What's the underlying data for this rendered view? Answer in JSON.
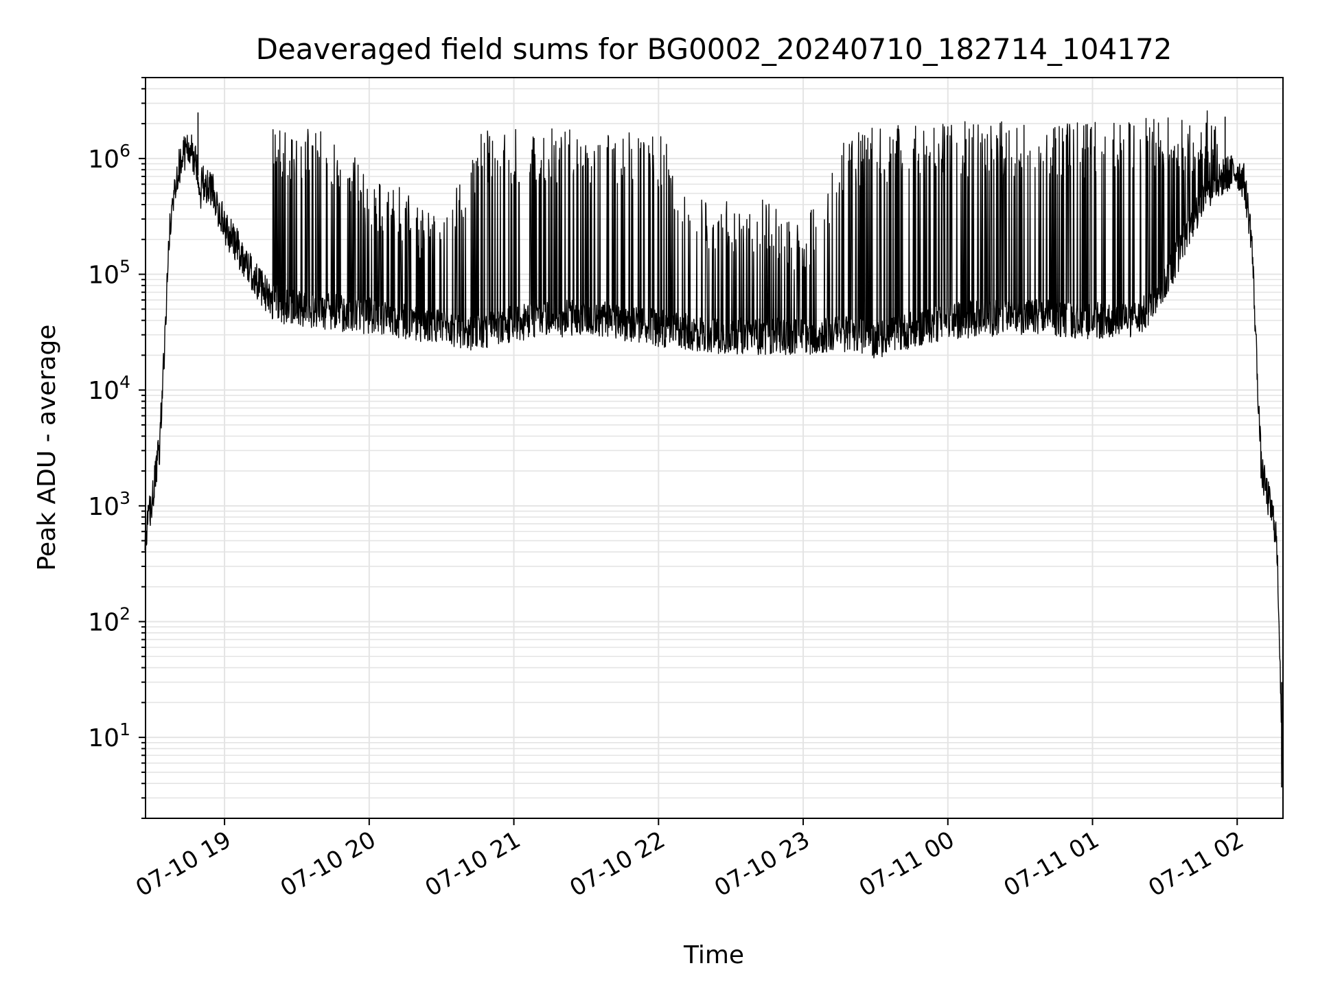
{
  "chart_data": {
    "type": "line",
    "title": "Deaveraged field sums for BG0002_20240710_182714_104172",
    "xlabel": "Time",
    "ylabel": "Peak ADU - average",
    "y_scale": "log",
    "xlim": [
      "2024-07-10 18:27:14",
      "2024-07-11 02:19:00"
    ],
    "ylim": [
      2,
      5000000
    ],
    "x_ticks": [
      {
        "value": "2024-07-10 19:00",
        "label": "07-10 19"
      },
      {
        "value": "2024-07-10 20:00",
        "label": "07-10 20"
      },
      {
        "value": "2024-07-10 21:00",
        "label": "07-10 21"
      },
      {
        "value": "2024-07-10 22:00",
        "label": "07-10 22"
      },
      {
        "value": "2024-07-10 23:00",
        "label": "07-10 23"
      },
      {
        "value": "2024-07-11 00:00",
        "label": "07-11 00"
      },
      {
        "value": "2024-07-11 01:00",
        "label": "07-11 01"
      },
      {
        "value": "2024-07-11 02:00",
        "label": "07-11 02"
      }
    ],
    "y_ticks": [
      {
        "value": 10,
        "base": "10",
        "exp": "1"
      },
      {
        "value": 100,
        "base": "10",
        "exp": "2"
      },
      {
        "value": 1000,
        "base": "10",
        "exp": "3"
      },
      {
        "value": 10000,
        "base": "10",
        "exp": "4"
      },
      {
        "value": 100000,
        "base": "10",
        "exp": "5"
      },
      {
        "value": 1000000,
        "base": "10",
        "exp": "6"
      }
    ],
    "grid": true,
    "grid_color": "#e4e4e4",
    "line_color": "#000000",
    "series": [
      {
        "envelope": {
          "time": [
            "2024-07-10 18:27",
            "2024-07-10 18:29",
            "2024-07-10 18:30",
            "2024-07-10 18:31",
            "2024-07-10 18:33",
            "2024-07-10 18:35",
            "2024-07-10 18:37",
            "2024-07-10 18:40",
            "2024-07-10 18:43",
            "2024-07-10 18:46",
            "2024-07-10 18:50",
            "2024-07-10 18:55",
            "2024-07-10 19:00",
            "2024-07-10 19:05",
            "2024-07-10 19:10",
            "2024-07-10 19:15",
            "2024-07-10 19:20",
            "2024-07-10 19:30",
            "2024-07-10 19:45",
            "2024-07-10 20:00",
            "2024-07-10 20:15",
            "2024-07-10 20:30",
            "2024-07-10 20:45",
            "2024-07-10 21:00",
            "2024-07-10 21:30",
            "2024-07-10 22:00",
            "2024-07-10 22:20",
            "2024-07-10 22:40",
            "2024-07-10 23:00",
            "2024-07-10 23:20",
            "2024-07-10 23:30",
            "2024-07-10 23:45",
            "2024-07-11 00:00",
            "2024-07-11 00:30",
            "2024-07-11 01:00",
            "2024-07-11 01:20",
            "2024-07-11 01:30",
            "2024-07-11 01:45",
            "2024-07-11 01:55",
            "2024-07-11 02:00",
            "2024-07-11 02:03",
            "2024-07-11 02:06",
            "2024-07-11 02:08",
            "2024-07-11 02:10",
            "2024-07-11 02:12",
            "2024-07-11 02:14",
            "2024-07-11 02:16",
            "2024-07-11 02:17",
            "2024-07-11 02:18",
            "2024-07-11 02:19"
          ],
          "baseline": [
            400,
            900,
            1000,
            1500,
            3000,
            20000,
            200000,
            700000,
            1050000,
            1200000,
            600000,
            500000,
            250000,
            170000,
            110000,
            75000,
            55000,
            48000,
            45000,
            42000,
            38000,
            33000,
            30000,
            36000,
            42000,
            33000,
            29000,
            28000,
            28000,
            30000,
            26000,
            32000,
            38000,
            42000,
            38000,
            40000,
            80000,
            400000,
            700000,
            750000,
            600000,
            200000,
            20000,
            2000,
            1300,
            900,
            600,
            200,
            30,
            4
          ],
          "spike_top": [
            null,
            null,
            null,
            null,
            null,
            null,
            null,
            null,
            null,
            null,
            800000,
            700000,
            null,
            null,
            null,
            null,
            1400000,
            1400000,
            1300000,
            500000,
            400000,
            200000,
            1200000,
            1300000,
            1300000,
            1200000,
            300000,
            350000,
            200000,
            1300000,
            1300000,
            1400000,
            1500000,
            1500000,
            1500000,
            1600000,
            1600000,
            1700000,
            2300000,
            null,
            null,
            null,
            null,
            null,
            null,
            null,
            null,
            null,
            null,
            null
          ]
        },
        "peak_spikes": [
          {
            "time": "2024-07-10 18:49",
            "value": 2500000
          },
          {
            "time": "2024-07-11 01:55",
            "value": 2300000
          }
        ],
        "min_value": 3.7
      }
    ]
  }
}
